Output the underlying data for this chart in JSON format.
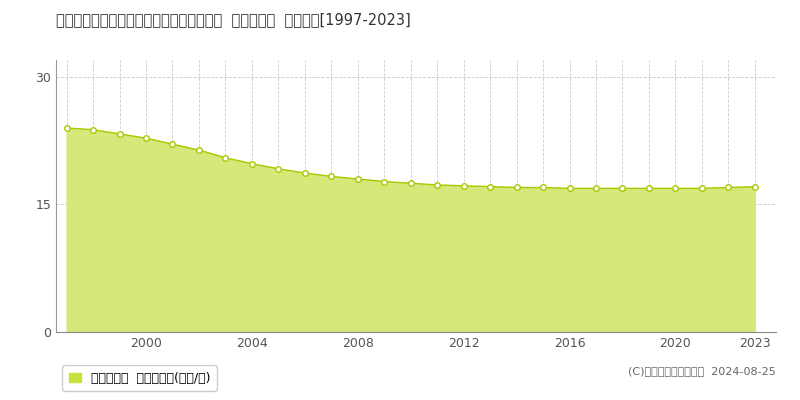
{
  "title": "愛知県豊橋市大清水町字大清水５８１番５  基準地価格  地価推移[1997-2023]",
  "years": [
    1997,
    1998,
    1999,
    2000,
    2001,
    2002,
    2003,
    2004,
    2005,
    2006,
    2007,
    2008,
    2009,
    2010,
    2011,
    2012,
    2013,
    2014,
    2015,
    2016,
    2017,
    2018,
    2019,
    2020,
    2021,
    2022,
    2023
  ],
  "values": [
    24.0,
    23.8,
    23.3,
    22.8,
    22.1,
    21.4,
    20.5,
    19.8,
    19.2,
    18.7,
    18.3,
    18.0,
    17.7,
    17.5,
    17.3,
    17.2,
    17.1,
    17.0,
    17.0,
    16.9,
    16.9,
    16.9,
    16.9,
    16.9,
    16.9,
    17.0,
    17.1
  ],
  "area_fill_color": "#d4e97a",
  "line_color": "#a8c800",
  "line_width": 1.0,
  "marker_color": "white",
  "marker_edge_color": "#a8c800",
  "marker_size": 4,
  "marker_edge_width": 1.0,
  "background_color": "#ffffff",
  "grid_color": "#cccccc",
  "yticks": [
    0,
    15,
    30
  ],
  "xtick_years": [
    2000,
    2004,
    2008,
    2012,
    2016,
    2020,
    2023
  ],
  "xlim": [
    1996.6,
    2023.8
  ],
  "ylim": [
    0,
    32
  ],
  "legend_label": "基準地価格  平均坪単価(万円/坪)",
  "legend_color": "#c8e040",
  "copyright_text": "(C)土地価格ドットコム  2024-08-25",
  "title_fontsize": 10.5,
  "axis_fontsize": 9,
  "legend_fontsize": 9,
  "copyright_fontsize": 8
}
